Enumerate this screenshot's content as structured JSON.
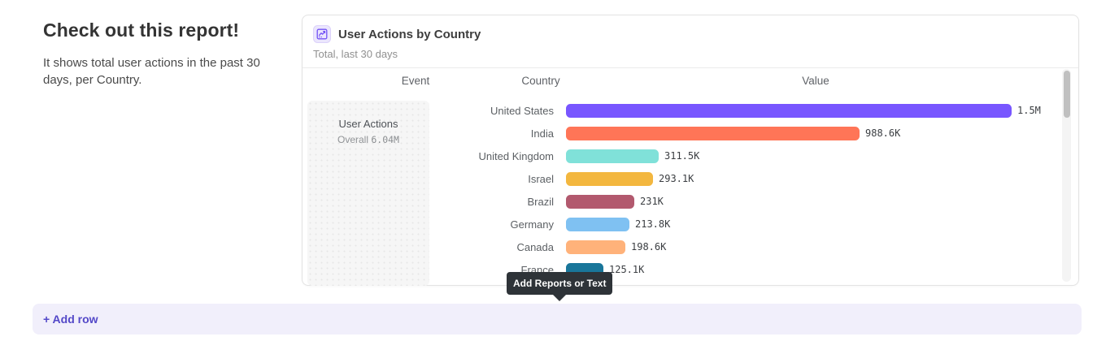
{
  "page": {
    "heading": "Check out this report!",
    "description": "It shows total user actions in the past 30 days, per Country.",
    "tooltip": "Add Reports or Text",
    "add_row_label": "+ Add row"
  },
  "card": {
    "title": "User Actions by Country",
    "subtitle": "Total, last 30 days",
    "icon": "insights-chart-icon",
    "columns": [
      "Event",
      "Country",
      "Value"
    ],
    "event": {
      "name": "User Actions",
      "overall_label": "Overall",
      "overall_value": "6.04M"
    }
  },
  "chart_data": {
    "type": "bar",
    "orientation": "horizontal",
    "title": "User Actions by Country",
    "subtitle": "Total, last 30 days",
    "event": "User Actions",
    "overall_total": "6.04M",
    "categories": [
      "United States",
      "India",
      "United Kingdom",
      "Israel",
      "Brazil",
      "Germany",
      "Canada",
      "France"
    ],
    "values": [
      1500000,
      988600,
      311500,
      293100,
      231000,
      213800,
      198600,
      125100
    ],
    "value_labels": [
      "1.5M",
      "988.6K",
      "311.5K",
      "293.1K",
      "231K",
      "213.8K",
      "198.6K",
      "125.1K"
    ],
    "bar_colors": [
      "#7856ff",
      "#ff7557",
      "#80e1d9",
      "#f3b73f",
      "#b2596e",
      "#7fc1f2",
      "#ffb27a",
      "#19769a"
    ],
    "xlim": [
      0,
      1500000
    ],
    "grid": false,
    "legend": "none"
  },
  "colors": {
    "accent_purple": "#7856ff",
    "card_border": "#e3e3e3",
    "tooltip_bg": "#2e3338",
    "add_row_bg": "#f1effb",
    "add_row_text": "#5348c8"
  }
}
